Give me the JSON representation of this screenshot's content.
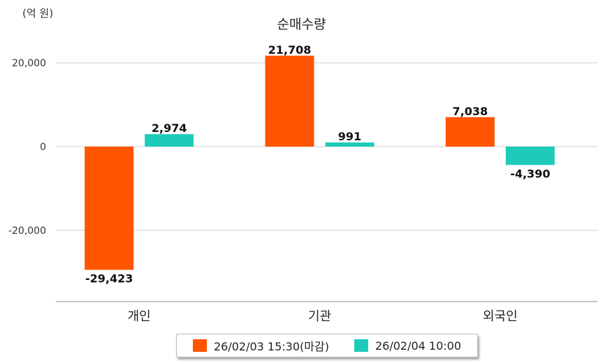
{
  "chart_data": {
    "type": "bar",
    "title": "순매수량",
    "unit_label": "(억 원)",
    "categories": [
      "개인",
      "기관",
      "외국인"
    ],
    "series": [
      {
        "name": "26/02/03 15:30(마감)",
        "color": "#ff5500",
        "values": [
          -29423,
          21708,
          7038
        ],
        "labels": [
          "-29,423",
          "21,708",
          "7,038"
        ]
      },
      {
        "name": "26/02/04 10:00",
        "color": "#1ecbbb",
        "values": [
          2974,
          991,
          -4390
        ],
        "labels": [
          "2,974",
          "991",
          "-4,390"
        ]
      }
    ],
    "y_ticks": [
      20000,
      0,
      -20000
    ],
    "y_tick_labels": [
      "20,000",
      "0",
      "-20,000"
    ],
    "ylim": [
      -37000,
      27000
    ],
    "grid": true,
    "legend_position": "bottom"
  }
}
